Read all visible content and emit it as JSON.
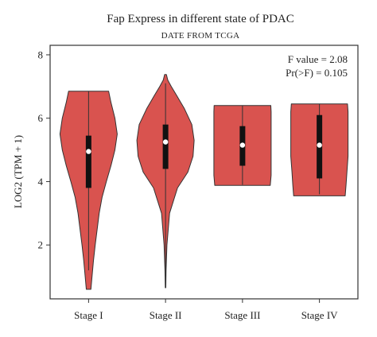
{
  "chart_data": {
    "type": "violin",
    "title": "Fap Express in different state of PDAC",
    "subtitle": "DATE FROM TCGA",
    "xlabel": "",
    "ylabel": "LOG2 (TPM + 1)",
    "ylim": [
      0.3,
      8.3
    ],
    "yticks": [
      2,
      4,
      6,
      8
    ],
    "grid": false,
    "categories": [
      "Stage I",
      "Stage II",
      "Stage III",
      "Stage IV"
    ],
    "annotations": [
      "F value = 2.08",
      "Pr(>F) = 0.105"
    ],
    "fill_color": "#d9534f",
    "stroke_color": "#333333",
    "groups": [
      {
        "name": "Stage I",
        "min": 0.6,
        "max": 6.85,
        "whisker_low": 1.2,
        "whisker_high": 6.85,
        "q1": 3.8,
        "q3": 5.45,
        "median": 4.95,
        "profile": [
          [
            0.6,
            0.08
          ],
          [
            1.0,
            0.12
          ],
          [
            1.5,
            0.17
          ],
          [
            2.0,
            0.23
          ],
          [
            2.5,
            0.3
          ],
          [
            3.0,
            0.37
          ],
          [
            3.5,
            0.47
          ],
          [
            4.0,
            0.62
          ],
          [
            4.5,
            0.78
          ],
          [
            5.0,
            0.92
          ],
          [
            5.5,
            1.0
          ],
          [
            6.0,
            0.92
          ],
          [
            6.5,
            0.78
          ],
          [
            6.85,
            0.7
          ]
        ]
      },
      {
        "name": "Stage II",
        "min": 0.65,
        "max": 7.38,
        "whisker_low": 0.8,
        "whisker_high": 7.1,
        "q1": 4.4,
        "q3": 5.8,
        "median": 5.25,
        "profile": [
          [
            0.65,
            0.01
          ],
          [
            1.2,
            0.02
          ],
          [
            2.0,
            0.05
          ],
          [
            3.0,
            0.14
          ],
          [
            3.8,
            0.42
          ],
          [
            4.3,
            0.78
          ],
          [
            4.8,
            0.96
          ],
          [
            5.3,
            1.0
          ],
          [
            5.8,
            0.92
          ],
          [
            6.3,
            0.66
          ],
          [
            6.7,
            0.4
          ],
          [
            7.0,
            0.2
          ],
          [
            7.2,
            0.08
          ],
          [
            7.38,
            0.03
          ]
        ]
      },
      {
        "name": "Stage III",
        "min": 3.88,
        "max": 6.4,
        "whisker_low": 3.9,
        "whisker_high": 6.4,
        "q1": 4.5,
        "q3": 5.75,
        "median": 5.15,
        "profile": [
          [
            3.88,
            0.97
          ],
          [
            4.2,
            1.0
          ],
          [
            4.6,
            1.0
          ],
          [
            5.0,
            1.0
          ],
          [
            5.4,
            1.0
          ],
          [
            5.8,
            1.0
          ],
          [
            6.2,
            1.0
          ],
          [
            6.4,
            0.99
          ]
        ]
      },
      {
        "name": "Stage IV",
        "min": 3.55,
        "max": 6.45,
        "whisker_low": 3.6,
        "whisker_high": 6.45,
        "q1": 4.1,
        "q3": 6.1,
        "median": 5.15,
        "profile": [
          [
            3.55,
            0.9
          ],
          [
            3.9,
            0.93
          ],
          [
            4.3,
            0.96
          ],
          [
            4.8,
            1.0
          ],
          [
            5.3,
            1.0
          ],
          [
            5.8,
            1.0
          ],
          [
            6.2,
            1.0
          ],
          [
            6.45,
            0.98
          ]
        ]
      }
    ]
  }
}
